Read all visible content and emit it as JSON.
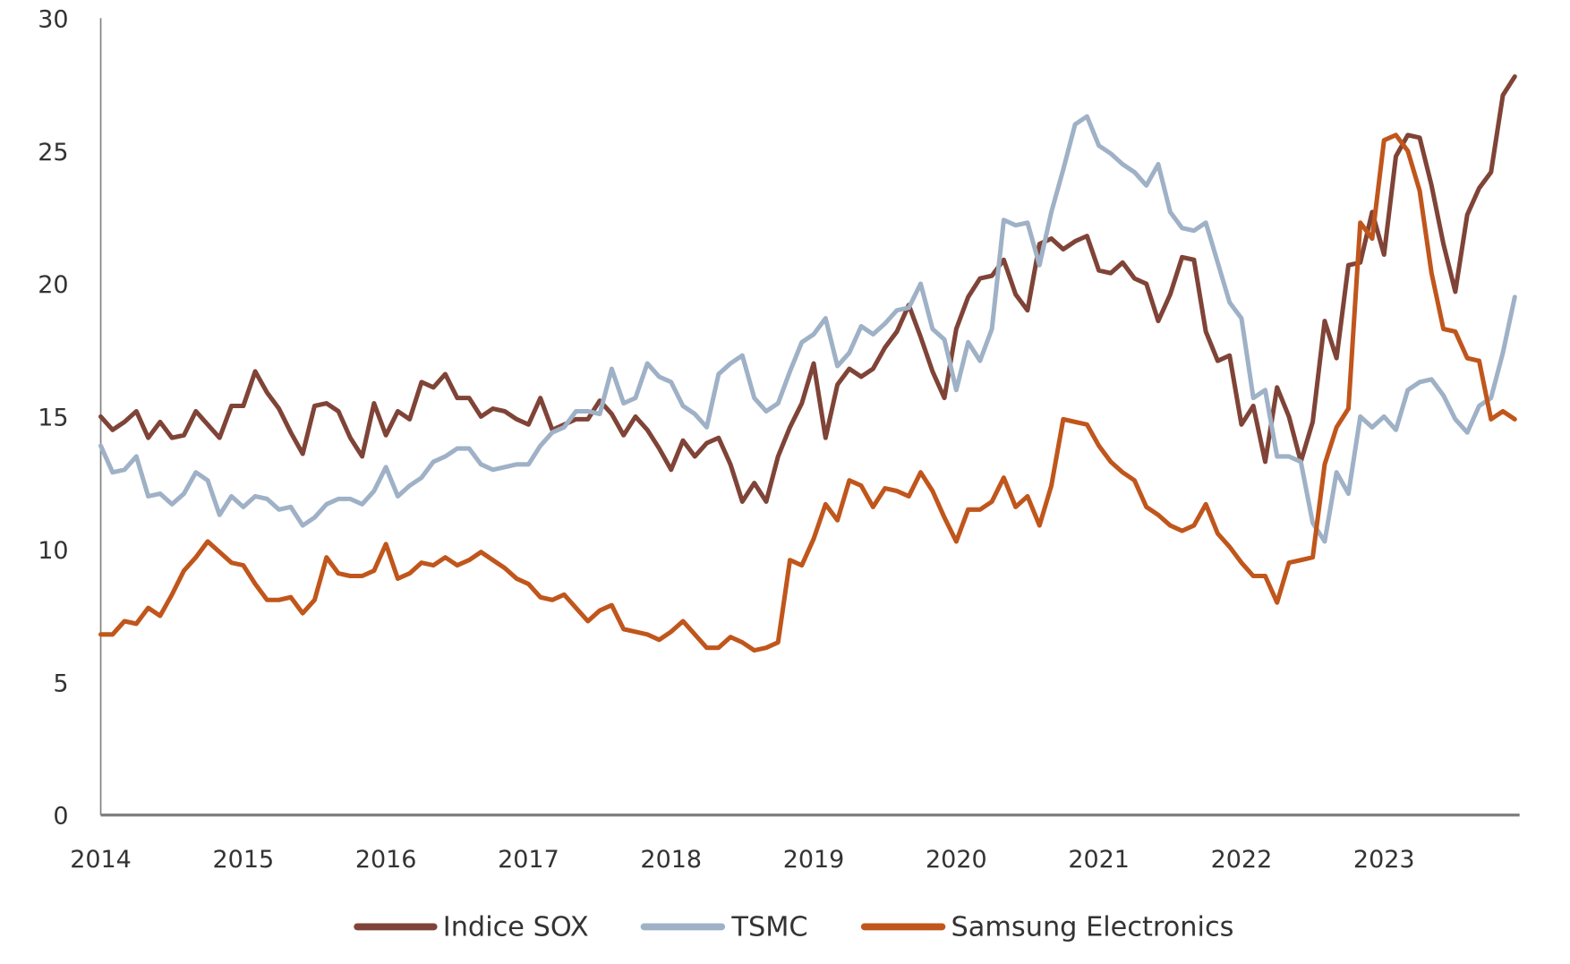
{
  "chart_data": {
    "type": "line",
    "title": "",
    "xlabel": "",
    "ylabel": "",
    "x_frequency": "monthly",
    "x_start": "2014-01",
    "x_end": "2023-12",
    "x_tick_labels": [
      "2014",
      "2015",
      "2016",
      "2017",
      "2018",
      "2019",
      "2020",
      "2021",
      "2022",
      "2023"
    ],
    "ylim": [
      0,
      30
    ],
    "y_ticks": [
      0,
      5,
      10,
      15,
      20,
      25,
      30
    ],
    "y_tick_labels": [
      "0",
      "5",
      "10",
      "15",
      "20",
      "25",
      "30"
    ],
    "grid": false,
    "legend_position": "bottom",
    "series": [
      {
        "name": "Indice SOX",
        "color": "#7f4437",
        "values": [
          15.0,
          14.5,
          14.8,
          15.2,
          14.2,
          14.8,
          14.2,
          14.3,
          15.2,
          14.7,
          14.2,
          15.4,
          15.4,
          16.7,
          15.9,
          15.3,
          14.4,
          13.6,
          15.4,
          15.5,
          15.2,
          14.2,
          13.5,
          15.5,
          14.3,
          15.2,
          14.9,
          16.3,
          16.1,
          16.6,
          15.7,
          15.7,
          15.0,
          15.3,
          15.2,
          14.9,
          14.7,
          15.7,
          14.5,
          14.7,
          14.9,
          14.9,
          15.6,
          15.1,
          14.3,
          15.0,
          14.5,
          13.8,
          13.0,
          14.1,
          13.5,
          14.0,
          14.2,
          13.2,
          11.8,
          12.5,
          11.8,
          13.5,
          14.6,
          15.5,
          17.0,
          14.2,
          16.2,
          16.8,
          16.5,
          16.8,
          17.6,
          18.2,
          19.2,
          18.0,
          16.7,
          15.7,
          18.3,
          19.5,
          20.2,
          20.3,
          20.9,
          19.6,
          19.0,
          21.5,
          21.7,
          21.3,
          21.6,
          21.8,
          20.5,
          20.4,
          20.8,
          20.2,
          20.0,
          18.6,
          19.6,
          21.0,
          20.9,
          18.2,
          17.1,
          17.3,
          14.7,
          15.4,
          13.3,
          16.1,
          15.0,
          13.3,
          14.8,
          18.6,
          17.2,
          20.7,
          20.8,
          22.7,
          21.1,
          24.8,
          25.6,
          25.5,
          23.7,
          21.5,
          19.7,
          22.6,
          23.6,
          24.2,
          27.1,
          27.8
        ]
      },
      {
        "name": "TSMC",
        "color": "#9fb1c6",
        "values": [
          13.9,
          12.9,
          13.0,
          13.5,
          12.0,
          12.1,
          11.7,
          12.1,
          12.9,
          12.6,
          11.3,
          12.0,
          11.6,
          12.0,
          11.9,
          11.5,
          11.6,
          10.9,
          11.2,
          11.7,
          11.9,
          11.9,
          11.7,
          12.2,
          13.1,
          12.0,
          12.4,
          12.7,
          13.3,
          13.5,
          13.8,
          13.8,
          13.2,
          13.0,
          13.1,
          13.2,
          13.2,
          13.9,
          14.4,
          14.6,
          15.2,
          15.2,
          15.1,
          16.8,
          15.5,
          15.7,
          17.0,
          16.5,
          16.3,
          15.4,
          15.1,
          14.6,
          16.6,
          17.0,
          17.3,
          15.7,
          15.2,
          15.5,
          16.7,
          17.8,
          18.1,
          18.7,
          16.9,
          17.4,
          18.4,
          18.1,
          18.5,
          19.0,
          19.1,
          20.0,
          18.3,
          17.9,
          16.0,
          17.8,
          17.1,
          18.3,
          22.4,
          22.2,
          22.3,
          20.7,
          22.7,
          24.3,
          26.0,
          26.3,
          25.2,
          24.9,
          24.5,
          24.2,
          23.7,
          24.5,
          22.7,
          22.1,
          22.0,
          22.3,
          20.8,
          19.3,
          18.7,
          15.7,
          16.0,
          13.5,
          13.5,
          13.3,
          11.0,
          10.3,
          12.9,
          12.1,
          15.0,
          14.6,
          15.0,
          14.5,
          16.0,
          16.3,
          16.4,
          15.8,
          14.9,
          14.4,
          15.4,
          15.7,
          17.4,
          19.5
        ]
      },
      {
        "name": "Samsung Electronics",
        "color": "#c0561c",
        "values": [
          6.8,
          6.8,
          7.3,
          7.2,
          7.8,
          7.5,
          8.3,
          9.2,
          9.7,
          10.3,
          9.9,
          9.5,
          9.4,
          8.7,
          8.1,
          8.1,
          8.2,
          7.6,
          8.1,
          9.7,
          9.1,
          9.0,
          9.0,
          9.2,
          10.2,
          8.9,
          9.1,
          9.5,
          9.4,
          9.7,
          9.4,
          9.6,
          9.9,
          9.6,
          9.3,
          8.9,
          8.7,
          8.2,
          8.1,
          8.3,
          7.8,
          7.3,
          7.7,
          7.9,
          7.0,
          6.9,
          6.8,
          6.6,
          6.9,
          7.3,
          6.8,
          6.3,
          6.3,
          6.7,
          6.5,
          6.2,
          6.3,
          6.5,
          9.6,
          9.4,
          10.4,
          11.7,
          11.1,
          12.6,
          12.4,
          11.6,
          12.3,
          12.2,
          12.0,
          12.9,
          12.2,
          11.2,
          10.3,
          11.5,
          11.5,
          11.8,
          12.7,
          11.6,
          12.0,
          10.9,
          12.4,
          14.9,
          14.8,
          14.7,
          13.9,
          13.3,
          12.9,
          12.6,
          11.6,
          11.3,
          10.9,
          10.7,
          10.9,
          11.7,
          10.6,
          10.1,
          9.5,
          9.0,
          9.0,
          8.0,
          9.5,
          9.6,
          9.7,
          13.2,
          14.6,
          15.3,
          22.3,
          21.7,
          25.4,
          25.6,
          25.0,
          23.5,
          20.4,
          18.3,
          18.2,
          17.2,
          17.1,
          14.9,
          15.2,
          14.9
        ]
      }
    ]
  },
  "axis_color": "#808080"
}
